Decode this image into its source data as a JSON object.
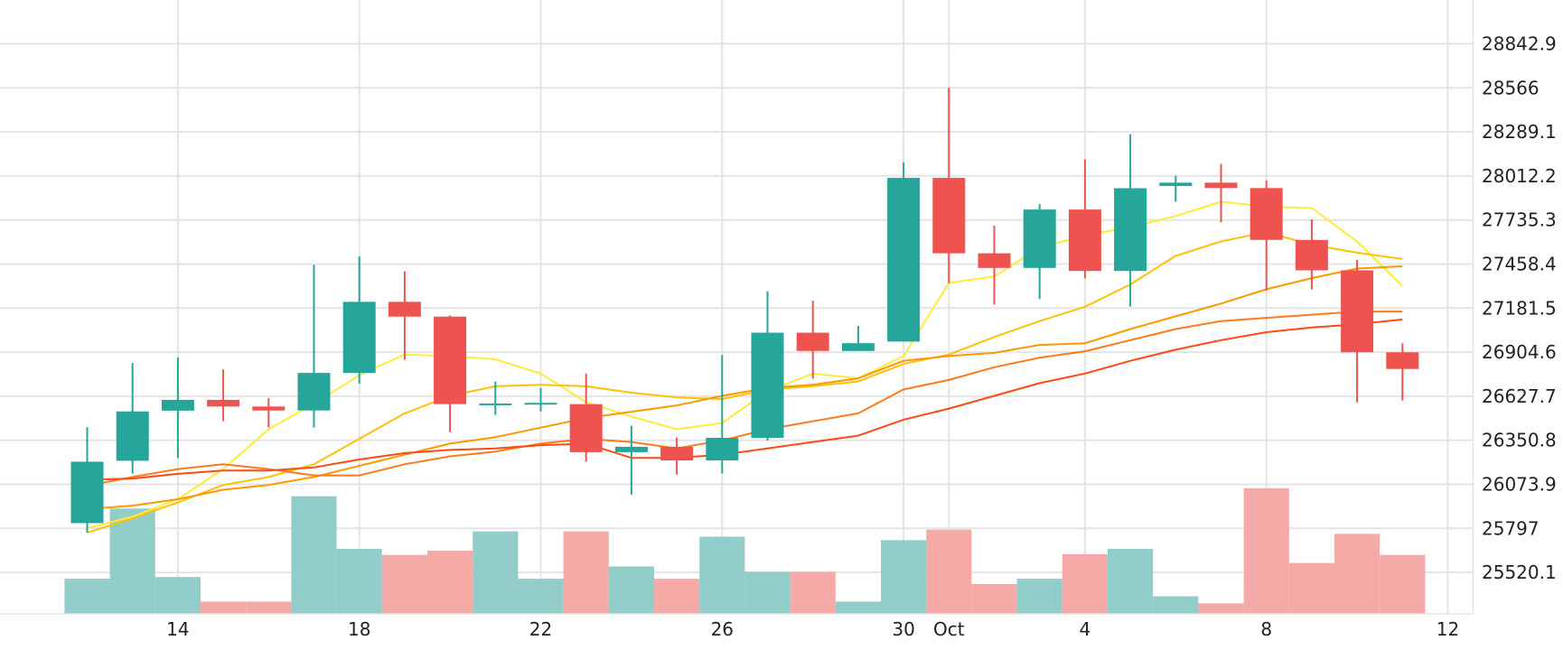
{
  "chart_data": {
    "type": "candlestick",
    "grid": true,
    "y_axis_position": "right",
    "ylim": [
      25243.2,
      29119.8
    ],
    "y_ticks": [
      {
        "label": "28842.9",
        "value": 28842.9
      },
      {
        "label": "28566",
        "value": 28566
      },
      {
        "label": "28289.1",
        "value": 28289.1
      },
      {
        "label": "28012.2",
        "value": 28012.2
      },
      {
        "label": "27735.3",
        "value": 27735.3
      },
      {
        "label": "27458.4",
        "value": 27458.4
      },
      {
        "label": "27181.5",
        "value": 27181.5
      },
      {
        "label": "26904.6",
        "value": 26904.6
      },
      {
        "label": "26627.7",
        "value": 26627.7
      },
      {
        "label": "26350.8",
        "value": 26350.8
      },
      {
        "label": "26073.9",
        "value": 26073.9
      },
      {
        "label": "25797",
        "value": 25797
      },
      {
        "label": "25520.1",
        "value": 25520.1
      }
    ],
    "x_ticks": [
      {
        "label": "14",
        "date": "2023-09-14"
      },
      {
        "label": "18",
        "date": "2023-09-18"
      },
      {
        "label": "22",
        "date": "2023-09-22"
      },
      {
        "label": "26",
        "date": "2023-09-26"
      },
      {
        "label": "30",
        "date": "2023-09-30"
      },
      {
        "label": "Oct",
        "date": "2023-10-01"
      },
      {
        "label": "4",
        "date": "2023-10-04"
      },
      {
        "label": "8",
        "date": "2023-10-08"
      },
      {
        "label": "12",
        "date": "2023-10-12"
      }
    ],
    "colors": {
      "up": "#26a69a",
      "down": "#ef5350",
      "volume_up": "#92cdca",
      "volume_down": "#f5aaa8",
      "grid": "#e4e4e4",
      "axis_text": "#222222"
    },
    "candles": [
      {
        "date": "2023-09-12",
        "open": 25830,
        "high": 26433,
        "low": 25770,
        "close": 26216
      },
      {
        "date": "2023-09-13",
        "open": 26222,
        "high": 26837,
        "low": 26142,
        "close": 26532
      },
      {
        "date": "2023-09-14",
        "open": 26537,
        "high": 26871,
        "low": 26239,
        "close": 26605
      },
      {
        "date": "2023-09-15",
        "open": 26605,
        "high": 26796,
        "low": 26471,
        "close": 26563
      },
      {
        "date": "2023-09-16",
        "open": 26563,
        "high": 26615,
        "low": 26431,
        "close": 26538
      },
      {
        "date": "2023-09-17",
        "open": 26538,
        "high": 27454,
        "low": 26431,
        "close": 26774
      },
      {
        "date": "2023-09-18",
        "open": 26774,
        "high": 27505,
        "low": 26707,
        "close": 27221
      },
      {
        "date": "2023-09-19",
        "open": 27221,
        "high": 27412,
        "low": 26857,
        "close": 27128
      },
      {
        "date": "2023-09-20",
        "open": 27128,
        "high": 27135,
        "low": 26402,
        "close": 26578
      },
      {
        "date": "2023-09-21",
        "open": 26578,
        "high": 26720,
        "low": 26511,
        "close": 26582
      },
      {
        "date": "2023-09-22",
        "open": 26582,
        "high": 26680,
        "low": 26531,
        "close": 26586
      },
      {
        "date": "2023-09-23",
        "open": 26578,
        "high": 26771,
        "low": 26216,
        "close": 26276
      },
      {
        "date": "2023-09-24",
        "open": 26276,
        "high": 26442,
        "low": 26009,
        "close": 26310
      },
      {
        "date": "2023-09-25",
        "open": 26310,
        "high": 26368,
        "low": 26135,
        "close": 26224
      },
      {
        "date": "2023-09-26",
        "open": 26224,
        "high": 26887,
        "low": 26142,
        "close": 26366
      },
      {
        "date": "2023-09-27",
        "open": 26366,
        "high": 27288,
        "low": 26349,
        "close": 27027
      },
      {
        "date": "2023-09-28",
        "open": 27027,
        "high": 27228,
        "low": 26737,
        "close": 26912
      },
      {
        "date": "2023-09-29",
        "open": 26912,
        "high": 27069,
        "low": 26915,
        "close": 26961
      },
      {
        "date": "2023-09-30",
        "open": 26971,
        "high": 28098,
        "low": 26971,
        "close": 28000
      },
      {
        "date": "2023-10-01",
        "open": 28000,
        "high": 28566,
        "low": 27337,
        "close": 27526
      },
      {
        "date": "2023-10-02",
        "open": 27526,
        "high": 27700,
        "low": 27204,
        "close": 27434
      },
      {
        "date": "2023-10-03",
        "open": 27434,
        "high": 27835,
        "low": 27239,
        "close": 27801
      },
      {
        "date": "2023-10-04",
        "open": 27801,
        "high": 28116,
        "low": 27368,
        "close": 27415
      },
      {
        "date": "2023-10-05",
        "open": 27415,
        "high": 28275,
        "low": 27192,
        "close": 27935
      },
      {
        "date": "2023-10-06",
        "open": 27949,
        "high": 28013,
        "low": 27850,
        "close": 27970
      },
      {
        "date": "2023-10-07",
        "open": 27970,
        "high": 28088,
        "low": 27721,
        "close": 27936
      },
      {
        "date": "2023-10-08",
        "open": 27936,
        "high": 27985,
        "low": 27292,
        "close": 27610
      },
      {
        "date": "2023-10-09",
        "open": 27610,
        "high": 27739,
        "low": 27299,
        "close": 27419
      },
      {
        "date": "2023-10-10",
        "open": 27419,
        "high": 27485,
        "low": 26589,
        "close": 26904
      },
      {
        "date": "2023-10-11",
        "open": 26904,
        "high": 26960,
        "low": 26601,
        "close": 26799
      }
    ],
    "volume_ylim": [
      0,
      36
    ],
    "volume": [
      10,
      30,
      10.5,
      3.5,
      3.5,
      33.5,
      18.5,
      16.8,
      18,
      23.5,
      10,
      23.5,
      13.5,
      10,
      22,
      12,
      12,
      3.5,
      21,
      24,
      8.5,
      10,
      17,
      18.5,
      5,
      3,
      35.8,
      14.5,
      22.8,
      16.8
    ],
    "moving_averages": [
      {
        "color": "#ffeb3b",
        "values": [
          25798,
          25870,
          25980,
          26170,
          26420,
          26580,
          26760,
          26890,
          26880,
          26860,
          26770,
          26590,
          26500,
          26420,
          26460,
          26660,
          26770,
          26740,
          26880,
          27340,
          27380,
          27560,
          27640,
          27690,
          27760,
          27850,
          27820,
          27810,
          27600,
          27320
        ]
      },
      {
        "color": "#ffc107",
        "values": [
          25770,
          25860,
          25960,
          26070,
          26120,
          26200,
          26360,
          26520,
          26630,
          26690,
          26700,
          26690,
          26650,
          26620,
          26610,
          26670,
          26690,
          26720,
          26830,
          26890,
          27000,
          27100,
          27190,
          27330,
          27510,
          27600,
          27660,
          27580,
          27530,
          27490
        ]
      },
      {
        "color": "#ff9800",
        "values": [
          25918,
          25940,
          25980,
          26040,
          26070,
          26120,
          26190,
          26260,
          26330,
          26370,
          26430,
          26490,
          26530,
          26570,
          26630,
          26680,
          26700,
          26740,
          26850,
          26880,
          26900,
          26950,
          26960,
          27050,
          27130,
          27210,
          27300,
          27370,
          27430,
          27445
        ]
      },
      {
        "color": "#ff7a1a",
        "values": [
          26065,
          26120,
          26170,
          26200,
          26170,
          26130,
          26130,
          26200,
          26250,
          26280,
          26330,
          26360,
          26340,
          26300,
          26350,
          26420,
          26470,
          26520,
          26670,
          26730,
          26810,
          26870,
          26910,
          26980,
          27050,
          27100,
          27120,
          27140,
          27160,
          27160
        ]
      },
      {
        "color": "#ff4a12",
        "values": [
          26103,
          26110,
          26140,
          26160,
          26160,
          26180,
          26230,
          26270,
          26290,
          26300,
          26320,
          26330,
          26240,
          26240,
          26260,
          26300,
          26340,
          26380,
          26480,
          26550,
          26630,
          26710,
          26770,
          26850,
          26920,
          26980,
          27030,
          27060,
          27080,
          27110
        ]
      }
    ]
  }
}
